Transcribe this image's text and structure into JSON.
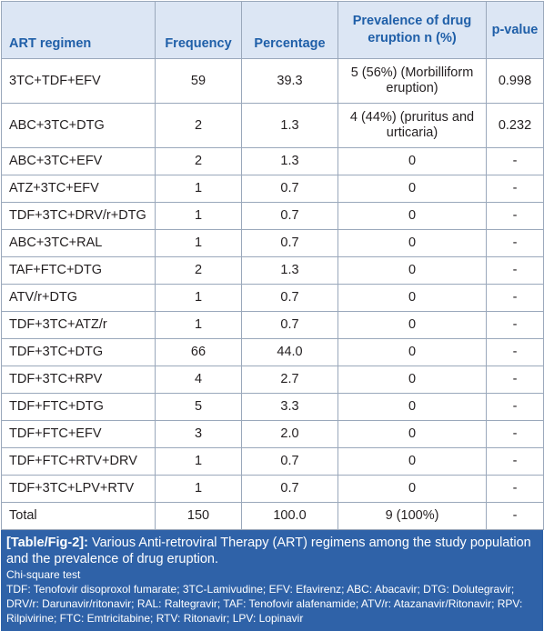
{
  "headers": {
    "regimen": "ART regimen",
    "frequency": "Frequency",
    "percentage": "Percentage",
    "prevalence": "Prevalence of drug eruption n (%)",
    "pvalue": "p-value"
  },
  "rows": [
    {
      "regimen": "3TC+TDF+EFV",
      "frequency": "59",
      "percentage": "39.3",
      "prevalence": "5 (56%) (Morbilliform eruption)",
      "pvalue": "0.998",
      "tall": true
    },
    {
      "regimen": "ABC+3TC+DTG",
      "frequency": "2",
      "percentage": "1.3",
      "prevalence": "4 (44%) (pruritus and urticaria)",
      "pvalue": "0.232",
      "tall": true
    },
    {
      "regimen": "ABC+3TC+EFV",
      "frequency": "2",
      "percentage": "1.3",
      "prevalence": "0",
      "pvalue": "-"
    },
    {
      "regimen": "ATZ+3TC+EFV",
      "frequency": "1",
      "percentage": "0.7",
      "prevalence": "0",
      "pvalue": "-"
    },
    {
      "regimen": "TDF+3TC+DRV/r+DTG",
      "frequency": "1",
      "percentage": "0.7",
      "prevalence": "0",
      "pvalue": "-"
    },
    {
      "regimen": "ABC+3TC+RAL",
      "frequency": "1",
      "percentage": "0.7",
      "prevalence": "0",
      "pvalue": "-"
    },
    {
      "regimen": "TAF+FTC+DTG",
      "frequency": "2",
      "percentage": "1.3",
      "prevalence": "0",
      "pvalue": "-"
    },
    {
      "regimen": "ATV/r+DTG",
      "frequency": "1",
      "percentage": "0.7",
      "prevalence": "0",
      "pvalue": "-"
    },
    {
      "regimen": "TDF+3TC+ATZ/r",
      "frequency": "1",
      "percentage": "0.7",
      "prevalence": "0",
      "pvalue": "-"
    },
    {
      "regimen": "TDF+3TC+DTG",
      "frequency": "66",
      "percentage": "44.0",
      "prevalence": "0",
      "pvalue": "-"
    },
    {
      "regimen": "TDF+3TC+RPV",
      "frequency": "4",
      "percentage": "2.7",
      "prevalence": "0",
      "pvalue": "-"
    },
    {
      "regimen": "TDF+FTC+DTG",
      "frequency": "5",
      "percentage": "3.3",
      "prevalence": "0",
      "pvalue": "-"
    },
    {
      "regimen": "TDF+FTC+EFV",
      "frequency": "3",
      "percentage": "2.0",
      "prevalence": "0",
      "pvalue": "-"
    },
    {
      "regimen": "TDF+FTC+RTV+DRV",
      "frequency": "1",
      "percentage": "0.7",
      "prevalence": "0",
      "pvalue": "-"
    },
    {
      "regimen": "TDF+3TC+LPV+RTV",
      "frequency": "1",
      "percentage": "0.7",
      "prevalence": "0",
      "pvalue": "-"
    },
    {
      "regimen": "Total",
      "frequency": "150",
      "percentage": "100.0",
      "prevalence": "9 (100%)",
      "pvalue": "-"
    }
  ],
  "caption": {
    "label": "[Table/Fig-2]:",
    "title": "Various Anti-retroviral Therapy (ART) regimens among the study population and the prevalence of drug eruption.",
    "test": "Chi-square test",
    "abbreviations": "TDF: Tenofovir disoproxol fumarate; 3TC-Lamivudine; EFV: Efavirenz; ABC: Abacavir; DTG: Dolutegravir; DRV/r: Darunavir/ritonavir; RAL: Raltegravir; TAF: Tenofovir alafenamide; ATV/r: Atazanavir/Ritonavir; RPV: Rilpivirine; FTC: Emtricitabine; RTV: Ritonavir; LPV: Lopinavir"
  }
}
